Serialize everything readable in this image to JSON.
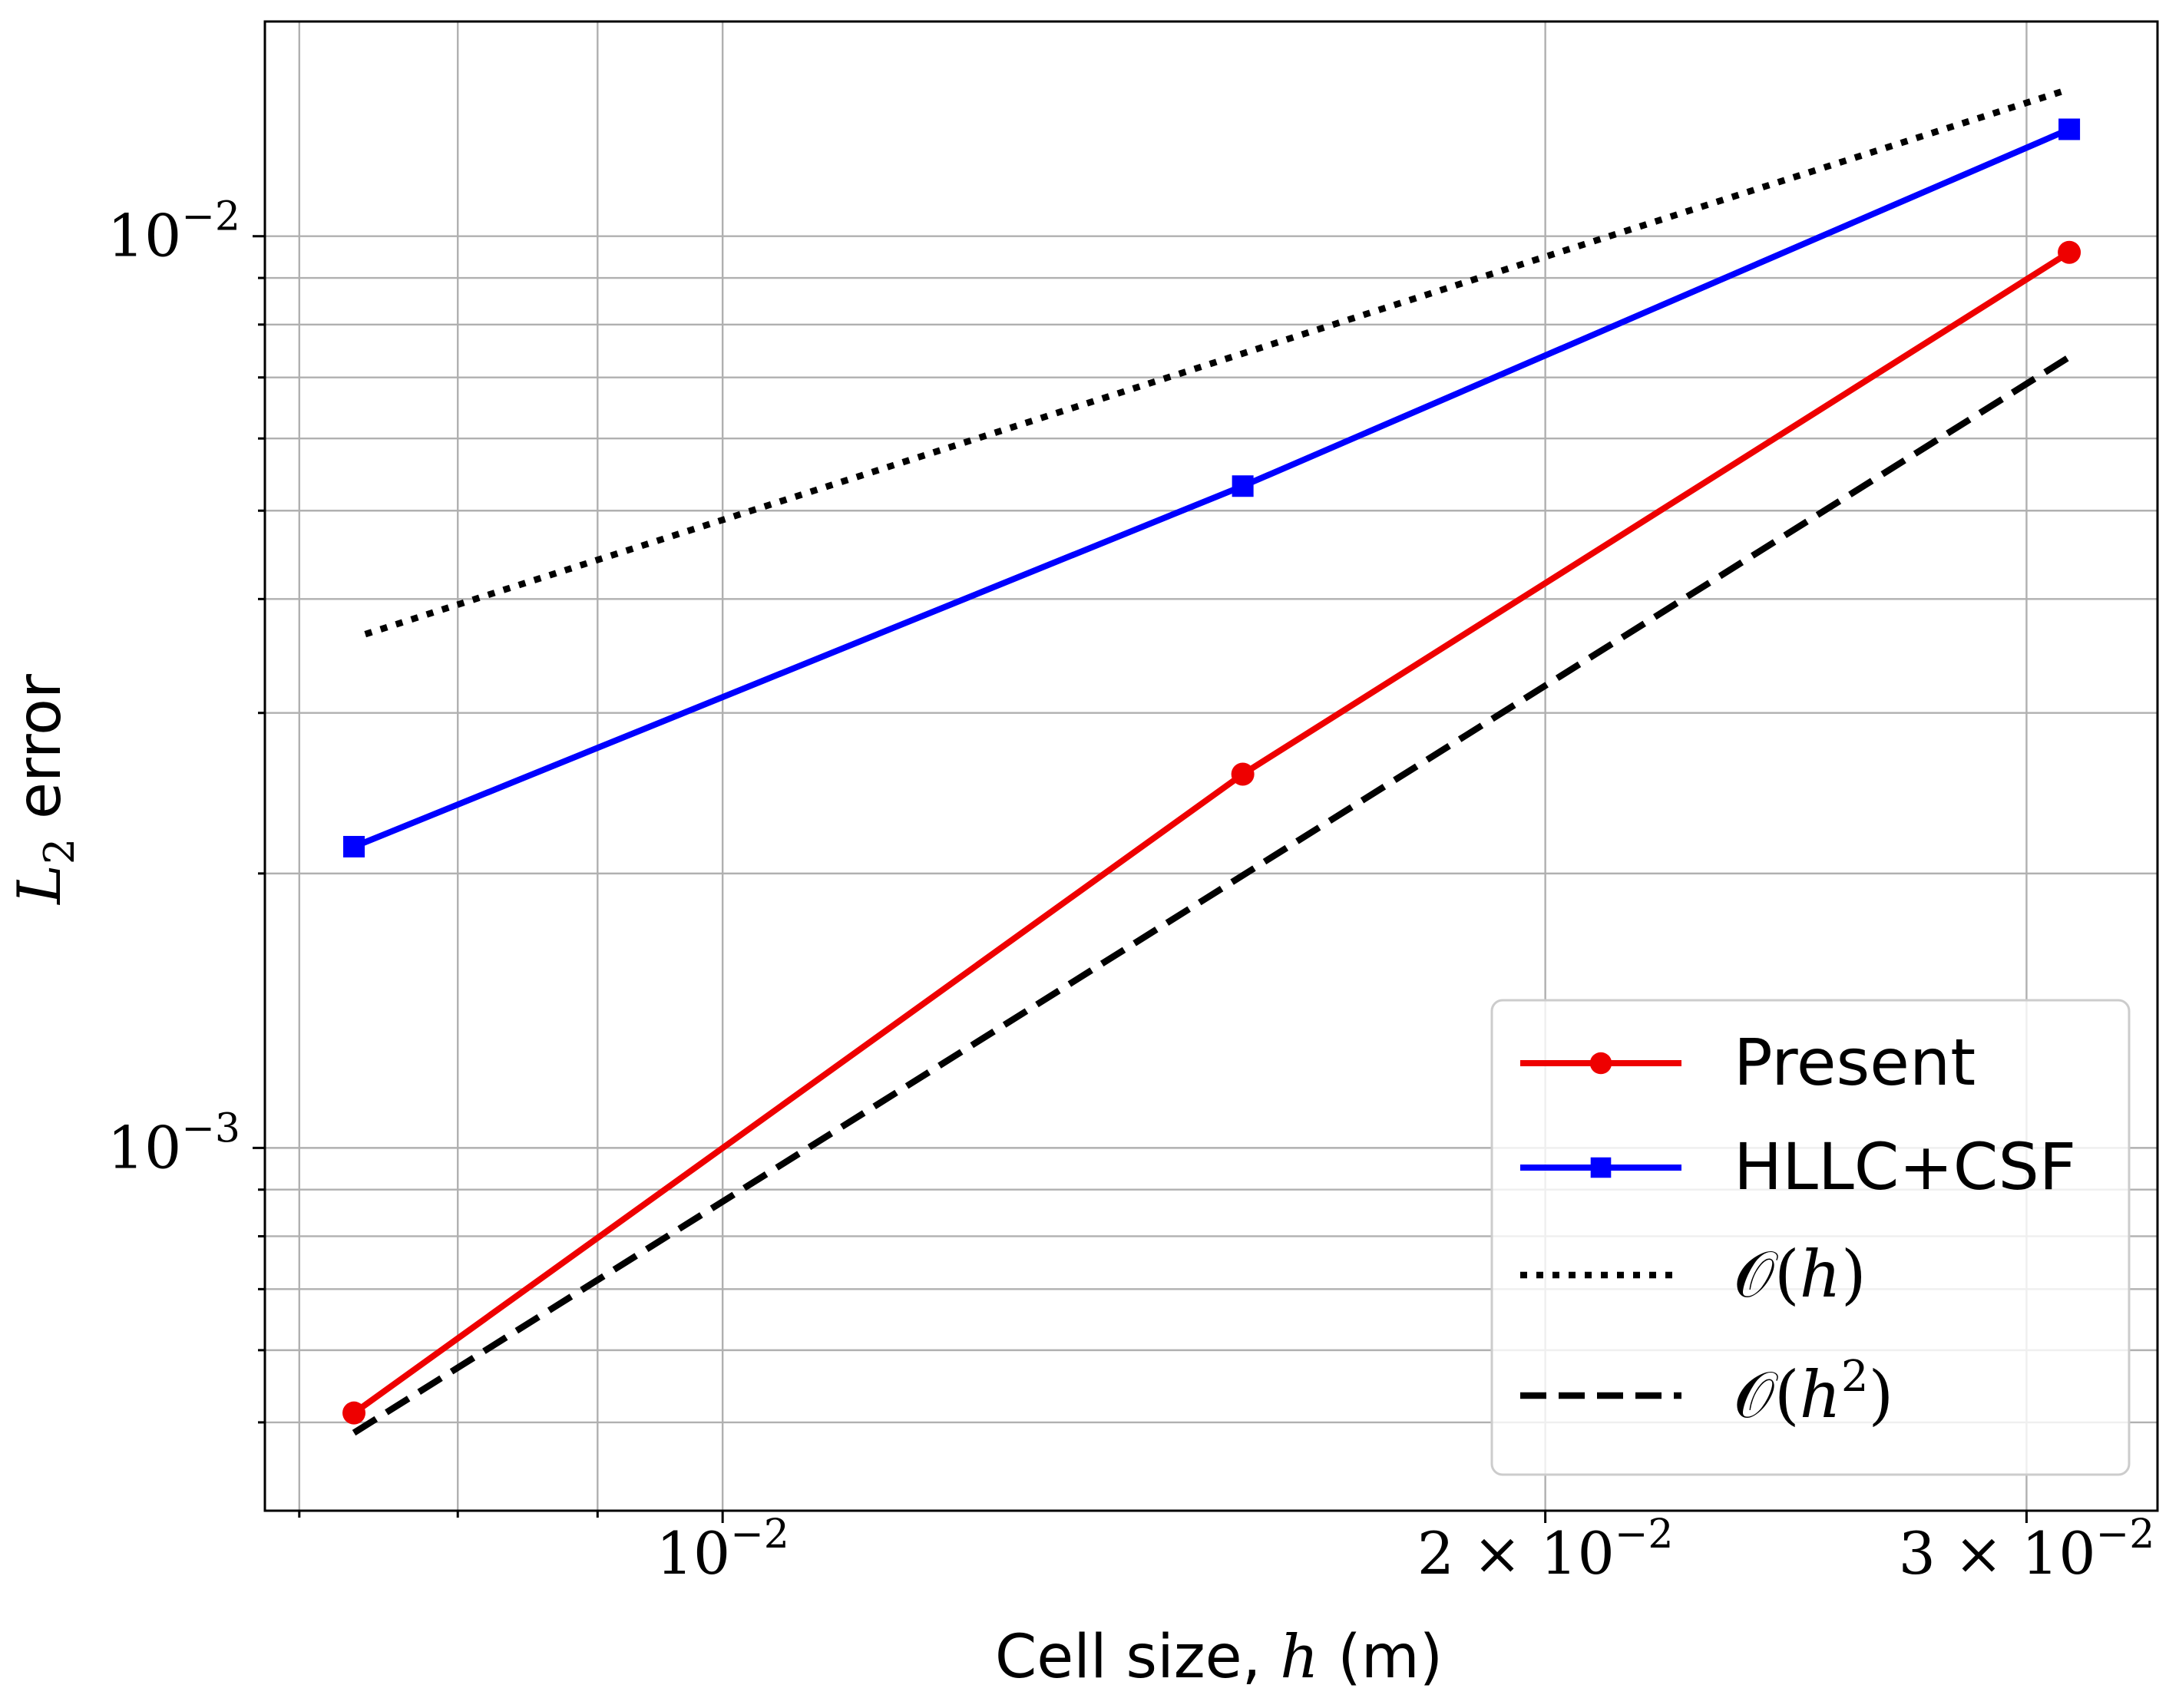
{
  "chart_data": {
    "type": "line",
    "scale": {
      "x": "log",
      "y": "log"
    },
    "xlim": [
      0.0068,
      0.0335
    ],
    "ylim": [
      0.0004,
      0.0172
    ],
    "grid": true,
    "xlabel": {
      "prefix": "Cell size, ",
      "var": "h",
      "suffix": " (m)"
    },
    "ylabel": {
      "var": "L",
      "sub": "2",
      "suffix": " error"
    },
    "x_major_ticks": [
      {
        "value": 0.01,
        "base": "10",
        "exp": "−2"
      },
      {
        "value": 0.02,
        "base": "2 × 10",
        "exp": "−2"
      },
      {
        "value": 0.03,
        "base": "3 × 10",
        "exp": "−2"
      }
    ],
    "x_minor_ticks": [
      0.007,
      0.008,
      0.009
    ],
    "y_major_ticks": [
      {
        "value": 0.01,
        "base": "10",
        "exp": "−2"
      },
      {
        "value": 0.001,
        "base": "10",
        "exp": "−3"
      }
    ],
    "y_minor_ticks": [
      0.0005,
      0.0006,
      0.0007,
      0.0008,
      0.0009,
      0.002,
      0.003,
      0.004,
      0.005,
      0.006,
      0.007,
      0.008,
      0.009
    ],
    "series": [
      {
        "name": "Present",
        "color": "#ee0000",
        "dash": "solid",
        "marker": "circle",
        "x": [
          0.00733,
          0.0155,
          0.0311
        ],
        "y": [
          0.000512,
          0.00257,
          0.0096
        ]
      },
      {
        "name": "HLLC+CSF",
        "color": "#0000ff",
        "dash": "solid",
        "marker": "square",
        "x": [
          0.00733,
          0.0155,
          0.0311
        ],
        "y": [
          0.00214,
          0.00532,
          0.0131
        ]
      },
      {
        "name": "𝒪(h)",
        "color": "#000000",
        "dash": "dotted",
        "marker": "none",
        "x": [
          0.0074,
          0.0311
        ],
        "y": [
          0.00366,
          0.0145
        ]
      },
      {
        "name": "𝒪(h²)",
        "color": "#000000",
        "dash": "dashed",
        "marker": "none",
        "x": [
          0.00733,
          0.0311
        ],
        "y": [
          0.000487,
          0.00737
        ]
      }
    ],
    "legend": {
      "position": "bottom-right",
      "entries": [
        {
          "main": "Present"
        },
        {
          "main": "HLLC+CSF"
        },
        {
          "main": "𝒪(",
          "var": "h",
          "close": ")"
        },
        {
          "main": "𝒪(",
          "var": "h",
          "sup": "2",
          "close": ")"
        }
      ]
    }
  }
}
